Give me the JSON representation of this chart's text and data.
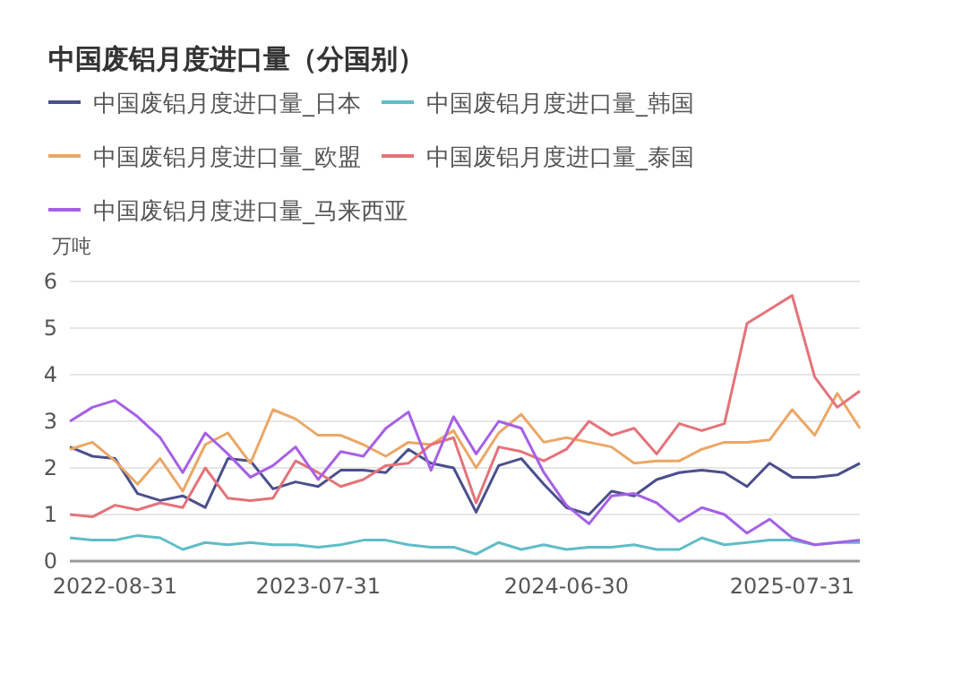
{
  "chart_data": {
    "type": "line",
    "title": "中国废铝月度进口量（分国别）",
    "ylabel": "万吨",
    "categories": [
      null,
      null,
      "2022-08-31",
      null,
      null,
      null,
      null,
      null,
      null,
      null,
      null,
      "2023-07-31",
      null,
      null,
      null,
      null,
      null,
      null,
      null,
      null,
      null,
      null,
      "2024-06-30",
      null,
      null,
      null,
      null,
      null,
      null,
      null,
      null,
      null,
      "2025-07-31",
      null,
      null,
      null
    ],
    "ylim": [
      0,
      6
    ],
    "yticks": [
      0,
      1,
      2,
      3,
      4,
      5,
      6
    ],
    "grid": "y",
    "legend": "top left",
    "marker": "none",
    "line_style": "solid",
    "series": [
      {
        "name": "中国废铝月度进口量_日本",
        "color": "#4b4f8c",
        "values": [
          2.45,
          2.25,
          2.2,
          1.45,
          1.3,
          1.4,
          1.15,
          2.2,
          2.15,
          1.55,
          1.7,
          1.6,
          1.95,
          1.95,
          1.9,
          2.4,
          2.1,
          2.0,
          1.05,
          2.05,
          2.2,
          1.65,
          1.15,
          1.0,
          1.5,
          1.4,
          1.75,
          1.9,
          1.95,
          1.9,
          1.6,
          2.1,
          1.8,
          1.8,
          1.85,
          2.1
        ]
      },
      {
        "name": "中国废铝月度进口量_韩国",
        "color": "#5fbdc6",
        "values": [
          0.5,
          0.45,
          0.45,
          0.55,
          0.5,
          0.25,
          0.4,
          0.35,
          0.4,
          0.35,
          0.35,
          0.3,
          0.35,
          0.45,
          0.45,
          0.35,
          0.3,
          0.3,
          0.15,
          0.4,
          0.25,
          0.35,
          0.25,
          0.3,
          0.3,
          0.35,
          0.25,
          0.25,
          0.5,
          0.35,
          0.4,
          0.45,
          0.45,
          0.35,
          0.4,
          0.4
        ]
      },
      {
        "name": "中国废铝月度进口量_欧盟",
        "color": "#eba765",
        "values": [
          2.4,
          2.55,
          2.15,
          1.65,
          2.2,
          1.5,
          2.5,
          2.75,
          2.1,
          3.25,
          3.05,
          2.7,
          2.7,
          2.5,
          2.25,
          2.55,
          2.5,
          2.8,
          2.0,
          2.75,
          3.15,
          2.55,
          2.65,
          2.55,
          2.45,
          2.1,
          2.15,
          2.15,
          2.4,
          2.55,
          2.55,
          2.6,
          3.25,
          2.7,
          3.6,
          2.85
        ]
      },
      {
        "name": "中国废铝月度进口量_泰国",
        "color": "#e4737a",
        "values": [
          1.0,
          0.95,
          1.2,
          1.1,
          1.25,
          1.15,
          2.0,
          1.35,
          1.3,
          1.35,
          2.15,
          1.9,
          1.6,
          1.75,
          2.05,
          2.1,
          2.5,
          2.65,
          1.25,
          2.45,
          2.35,
          2.15,
          2.4,
          3.0,
          2.7,
          2.85,
          2.3,
          2.95,
          2.8,
          2.95,
          5.1,
          5.4,
          5.7,
          3.95,
          3.3,
          3.65
        ]
      },
      {
        "name": "中国废铝月度进口量_马来西亚",
        "color": "#a660e6",
        "values": [
          3.0,
          3.3,
          3.45,
          3.1,
          2.65,
          1.9,
          2.75,
          2.3,
          1.8,
          2.05,
          2.45,
          1.75,
          2.35,
          2.25,
          2.85,
          3.2,
          1.95,
          3.1,
          2.3,
          3.0,
          2.85,
          1.9,
          1.2,
          0.8,
          1.4,
          1.45,
          1.25,
          0.85,
          1.15,
          1.0,
          0.6,
          0.9,
          0.5,
          0.35,
          0.4,
          0.45
        ]
      }
    ]
  }
}
